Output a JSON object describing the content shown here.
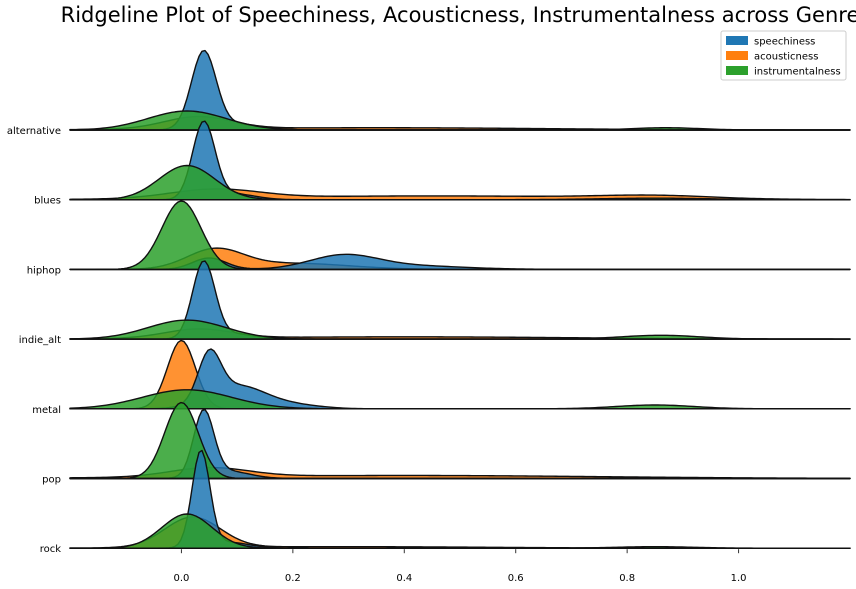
{
  "chart_data": {
    "type": "area",
    "subtype": "ridgeline",
    "title": "Ridgeline Plot of Speechiness, Acousticness, Instrumentalness across Genre",
    "xlabel": "",
    "ylabel": "",
    "xlim": [
      -0.2,
      1.2
    ],
    "x_ticks": [
      0.0,
      0.2,
      0.4,
      0.6,
      0.8,
      1.0
    ],
    "x_tick_labels": [
      "0.0",
      "0.2",
      "0.4",
      "0.6",
      "0.8",
      "1.0"
    ],
    "grid": false,
    "legend_position": "top-right",
    "series": [
      {
        "name": "speechiness",
        "color": "#1f77b4"
      },
      {
        "name": "acousticness",
        "color": "#ff7f0e"
      },
      {
        "name": "instrumentalness",
        "color": "#2ca02c"
      }
    ],
    "genres": [
      {
        "name": "alternative",
        "densities": {
          "speechiness": [
            [
              0.04,
              0.022,
              1.0
            ],
            [
              0.09,
              0.05,
              0.08
            ]
          ],
          "acousticness": [
            [
              0.03,
              0.06,
              0.16
            ],
            [
              0.35,
              0.3,
              0.03
            ]
          ],
          "instrumentalness": [
            [
              0.01,
              0.07,
              0.25
            ],
            [
              0.87,
              0.06,
              0.03
            ]
          ]
        }
      },
      {
        "name": "blues",
        "densities": {
          "speechiness": [
            [
              0.04,
              0.02,
              1.0
            ],
            [
              0.09,
              0.04,
              0.08
            ]
          ],
          "acousticness": [
            [
              0.06,
              0.08,
              0.12
            ],
            [
              0.45,
              0.3,
              0.05
            ],
            [
              0.85,
              0.1,
              0.04
            ]
          ],
          "instrumentalness": [
            [
              0.01,
              0.05,
              0.45
            ],
            [
              0.85,
              0.1,
              0.02
            ]
          ]
        }
      },
      {
        "name": "hiphop",
        "densities": {
          "speechiness": [
            [
              0.05,
              0.03,
              0.15
            ],
            [
              0.29,
              0.06,
              0.17
            ],
            [
              0.4,
              0.1,
              0.05
            ]
          ],
          "acousticness": [
            [
              0.06,
              0.05,
              0.25
            ],
            [
              0.2,
              0.1,
              0.08
            ]
          ],
          "instrumentalness": [
            [
              0.0,
              0.035,
              0.9
            ]
          ]
        }
      },
      {
        "name": "indie_alt",
        "densities": {
          "speechiness": [
            [
              0.04,
              0.02,
              1.0
            ],
            [
              0.09,
              0.04,
              0.07
            ]
          ],
          "acousticness": [
            [
              0.03,
              0.06,
              0.12
            ],
            [
              0.4,
              0.3,
              0.03
            ]
          ],
          "instrumentalness": [
            [
              0.01,
              0.07,
              0.25
            ],
            [
              0.86,
              0.07,
              0.05
            ]
          ]
        }
      },
      {
        "name": "metal",
        "densities": {
          "speechiness": [
            [
              0.05,
              0.02,
              0.6
            ],
            [
              0.1,
              0.05,
              0.3
            ],
            [
              0.2,
              0.05,
              0.05
            ]
          ],
          "acousticness": [
            [
              0.0,
              0.025,
              0.9
            ]
          ],
          "instrumentalness": [
            [
              0.01,
              0.08,
              0.25
            ],
            [
              0.85,
              0.07,
              0.05
            ]
          ]
        }
      },
      {
        "name": "pop",
        "densities": {
          "speechiness": [
            [
              0.04,
              0.018,
              0.85
            ],
            [
              0.08,
              0.04,
              0.1
            ]
          ],
          "acousticness": [
            [
              0.05,
              0.07,
              0.12
            ],
            [
              0.4,
              0.35,
              0.04
            ]
          ],
          "instrumentalness": [
            [
              0.0,
              0.03,
              1.0
            ]
          ]
        }
      },
      {
        "name": "rock",
        "densities": {
          "speechiness": [
            [
              0.035,
              0.016,
              1.25
            ],
            [
              0.08,
              0.04,
              0.08
            ]
          ],
          "acousticness": [
            [
              0.02,
              0.05,
              0.4
            ],
            [
              0.3,
              0.25,
              0.02
            ]
          ],
          "instrumentalness": [
            [
              0.01,
              0.045,
              0.45
            ],
            [
              0.85,
              0.07,
              0.02
            ]
          ]
        }
      }
    ]
  }
}
